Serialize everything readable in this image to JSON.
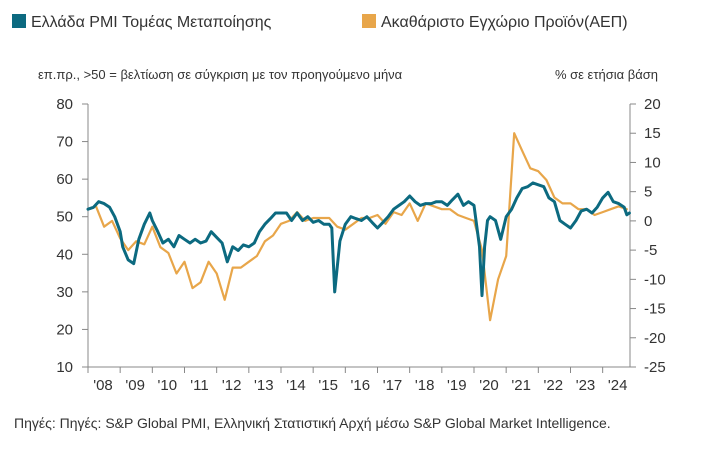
{
  "chart_data": {
    "type": "line",
    "legend": [
      {
        "name": "Ελλάδα PMI Τομέας Μεταποίησης",
        "color": "#0c6a80"
      },
      {
        "name": "Ακαθάριστο Εγχώριο Προϊόν(ΑΕΠ)",
        "color": "#e8a64a"
      }
    ],
    "left_note": "επ.πρ., >50 = βελτίωση σε σύγκριση με τον προηγούμενο μήνα",
    "right_note": "% σε ετήσια βάση",
    "x_tick_labels": [
      "'08",
      "'09",
      "'10",
      "'11",
      "'12",
      "'13",
      "'14",
      "'15",
      "'16",
      "'17",
      "'18",
      "'19",
      "'20",
      "'21",
      "'22",
      "'23",
      "'24"
    ],
    "xlim": [
      2008.0,
      2024.85
    ],
    "ylim_left": [
      10,
      80
    ],
    "ylim_right": [
      -25,
      20
    ],
    "y_ticks_left": [
      10,
      20,
      30,
      40,
      50,
      60,
      70,
      80
    ],
    "y_ticks_right": [
      -25,
      -20,
      -15,
      -10,
      -5,
      0,
      5,
      10,
      15,
      20
    ],
    "series": [
      {
        "name": "Ελλάδα PMI Τομέας Μεταποίησης",
        "axis": "left",
        "color": "#0c6a80",
        "x": [
          2008.0,
          2008.17,
          2008.33,
          2008.5,
          2008.67,
          2008.83,
          2009.0,
          2009.08,
          2009.25,
          2009.42,
          2009.58,
          2009.75,
          2009.92,
          2010.0,
          2010.17,
          2010.33,
          2010.5,
          2010.67,
          2010.83,
          2011.0,
          2011.17,
          2011.33,
          2011.5,
          2011.67,
          2011.83,
          2012.0,
          2012.17,
          2012.33,
          2012.5,
          2012.67,
          2012.83,
          2013.0,
          2013.17,
          2013.33,
          2013.5,
          2013.67,
          2013.83,
          2014.0,
          2014.17,
          2014.33,
          2014.5,
          2014.67,
          2014.83,
          2015.0,
          2015.17,
          2015.33,
          2015.5,
          2015.58,
          2015.67,
          2015.83,
          2016.0,
          2016.17,
          2016.33,
          2016.5,
          2016.67,
          2016.83,
          2017.0,
          2017.17,
          2017.33,
          2017.5,
          2017.67,
          2017.83,
          2018.0,
          2018.17,
          2018.33,
          2018.5,
          2018.67,
          2018.83,
          2019.0,
          2019.17,
          2019.33,
          2019.5,
          2019.67,
          2019.83,
          2020.0,
          2020.17,
          2020.25,
          2020.33,
          2020.42,
          2020.5,
          2020.67,
          2020.83,
          2021.0,
          2021.17,
          2021.33,
          2021.5,
          2021.67,
          2021.83,
          2022.0,
          2022.17,
          2022.33,
          2022.5,
          2022.67,
          2022.83,
          2023.0,
          2023.17,
          2023.33,
          2023.5,
          2023.67,
          2023.83,
          2024.0,
          2024.17,
          2024.33,
          2024.5,
          2024.67,
          2024.75,
          2024.83
        ],
        "values": [
          52,
          52.5,
          54,
          53.5,
          52.5,
          50,
          46,
          42,
          38.5,
          37.5,
          44,
          48,
          51,
          49,
          46,
          43,
          44,
          42,
          45,
          44,
          43,
          44,
          43,
          43.5,
          46,
          44.5,
          43,
          38,
          42,
          41,
          42.5,
          42,
          43,
          46,
          48,
          49.5,
          51,
          51,
          51,
          49,
          51,
          49,
          50,
          48.5,
          49,
          48,
          48,
          47,
          30,
          43.5,
          48,
          50,
          49.5,
          49,
          50,
          48.5,
          47,
          48.5,
          50,
          52,
          53,
          54,
          55.5,
          54,
          53,
          53.5,
          53.5,
          54,
          54,
          53,
          54.5,
          56,
          53,
          54,
          53,
          42,
          29,
          42,
          49,
          50,
          49,
          44,
          50,
          52,
          55,
          57.5,
          58,
          59,
          58.5,
          58,
          55,
          54,
          49,
          48,
          47,
          49,
          51.5,
          52,
          51,
          52.5,
          55,
          56.5,
          54,
          53.5,
          52.5,
          50.5,
          51
        ]
      },
      {
        "name": "Ακαθάριστο Εγχώριο Προϊόν(ΑΕΠ)",
        "axis": "right",
        "color": "#e8a64a",
        "x": [
          2008.0,
          2008.25,
          2008.5,
          2008.75,
          2009.0,
          2009.25,
          2009.5,
          2009.75,
          2010.0,
          2010.25,
          2010.5,
          2010.75,
          2011.0,
          2011.25,
          2011.5,
          2011.75,
          2012.0,
          2012.25,
          2012.5,
          2012.75,
          2013.0,
          2013.25,
          2013.5,
          2013.75,
          2014.0,
          2014.25,
          2014.5,
          2014.75,
          2015.0,
          2015.25,
          2015.5,
          2015.75,
          2016.0,
          2016.25,
          2016.5,
          2016.75,
          2017.0,
          2017.25,
          2017.5,
          2017.75,
          2018.0,
          2018.25,
          2018.5,
          2018.75,
          2019.0,
          2019.25,
          2019.5,
          2019.75,
          2020.0,
          2020.25,
          2020.5,
          2020.75,
          2021.0,
          2021.25,
          2021.5,
          2021.75,
          2022.0,
          2022.25,
          2022.5,
          2022.75,
          2023.0,
          2023.25,
          2023.5,
          2023.75,
          2024.0,
          2024.25,
          2024.5,
          2024.75
        ],
        "values": [
          2,
          2.5,
          -1,
          0,
          -3,
          -5,
          -3.5,
          -4,
          -1,
          -4.5,
          -5.5,
          -9,
          -7,
          -11.5,
          -10.5,
          -7,
          -9,
          -13.5,
          -8,
          -8,
          -7,
          -6,
          -3.5,
          -2.5,
          -0.5,
          0,
          1.5,
          0,
          0.5,
          0.5,
          0.5,
          -1,
          -1.5,
          -0.5,
          0.5,
          0.5,
          1,
          -0.5,
          1.5,
          1,
          3,
          0,
          3,
          2.5,
          2,
          2,
          1,
          0.5,
          0,
          -5,
          -17,
          -10,
          -6,
          15,
          12,
          9,
          8.5,
          7,
          4,
          3,
          3,
          2,
          2,
          1,
          1.5,
          2,
          2.5,
          2
        ]
      }
    ]
  },
  "source": "Πηγές: Πηγές: S&P Global PMI, Ελληνική Στατιστική Αρχή μέσω S&P Global Market Intelligence."
}
